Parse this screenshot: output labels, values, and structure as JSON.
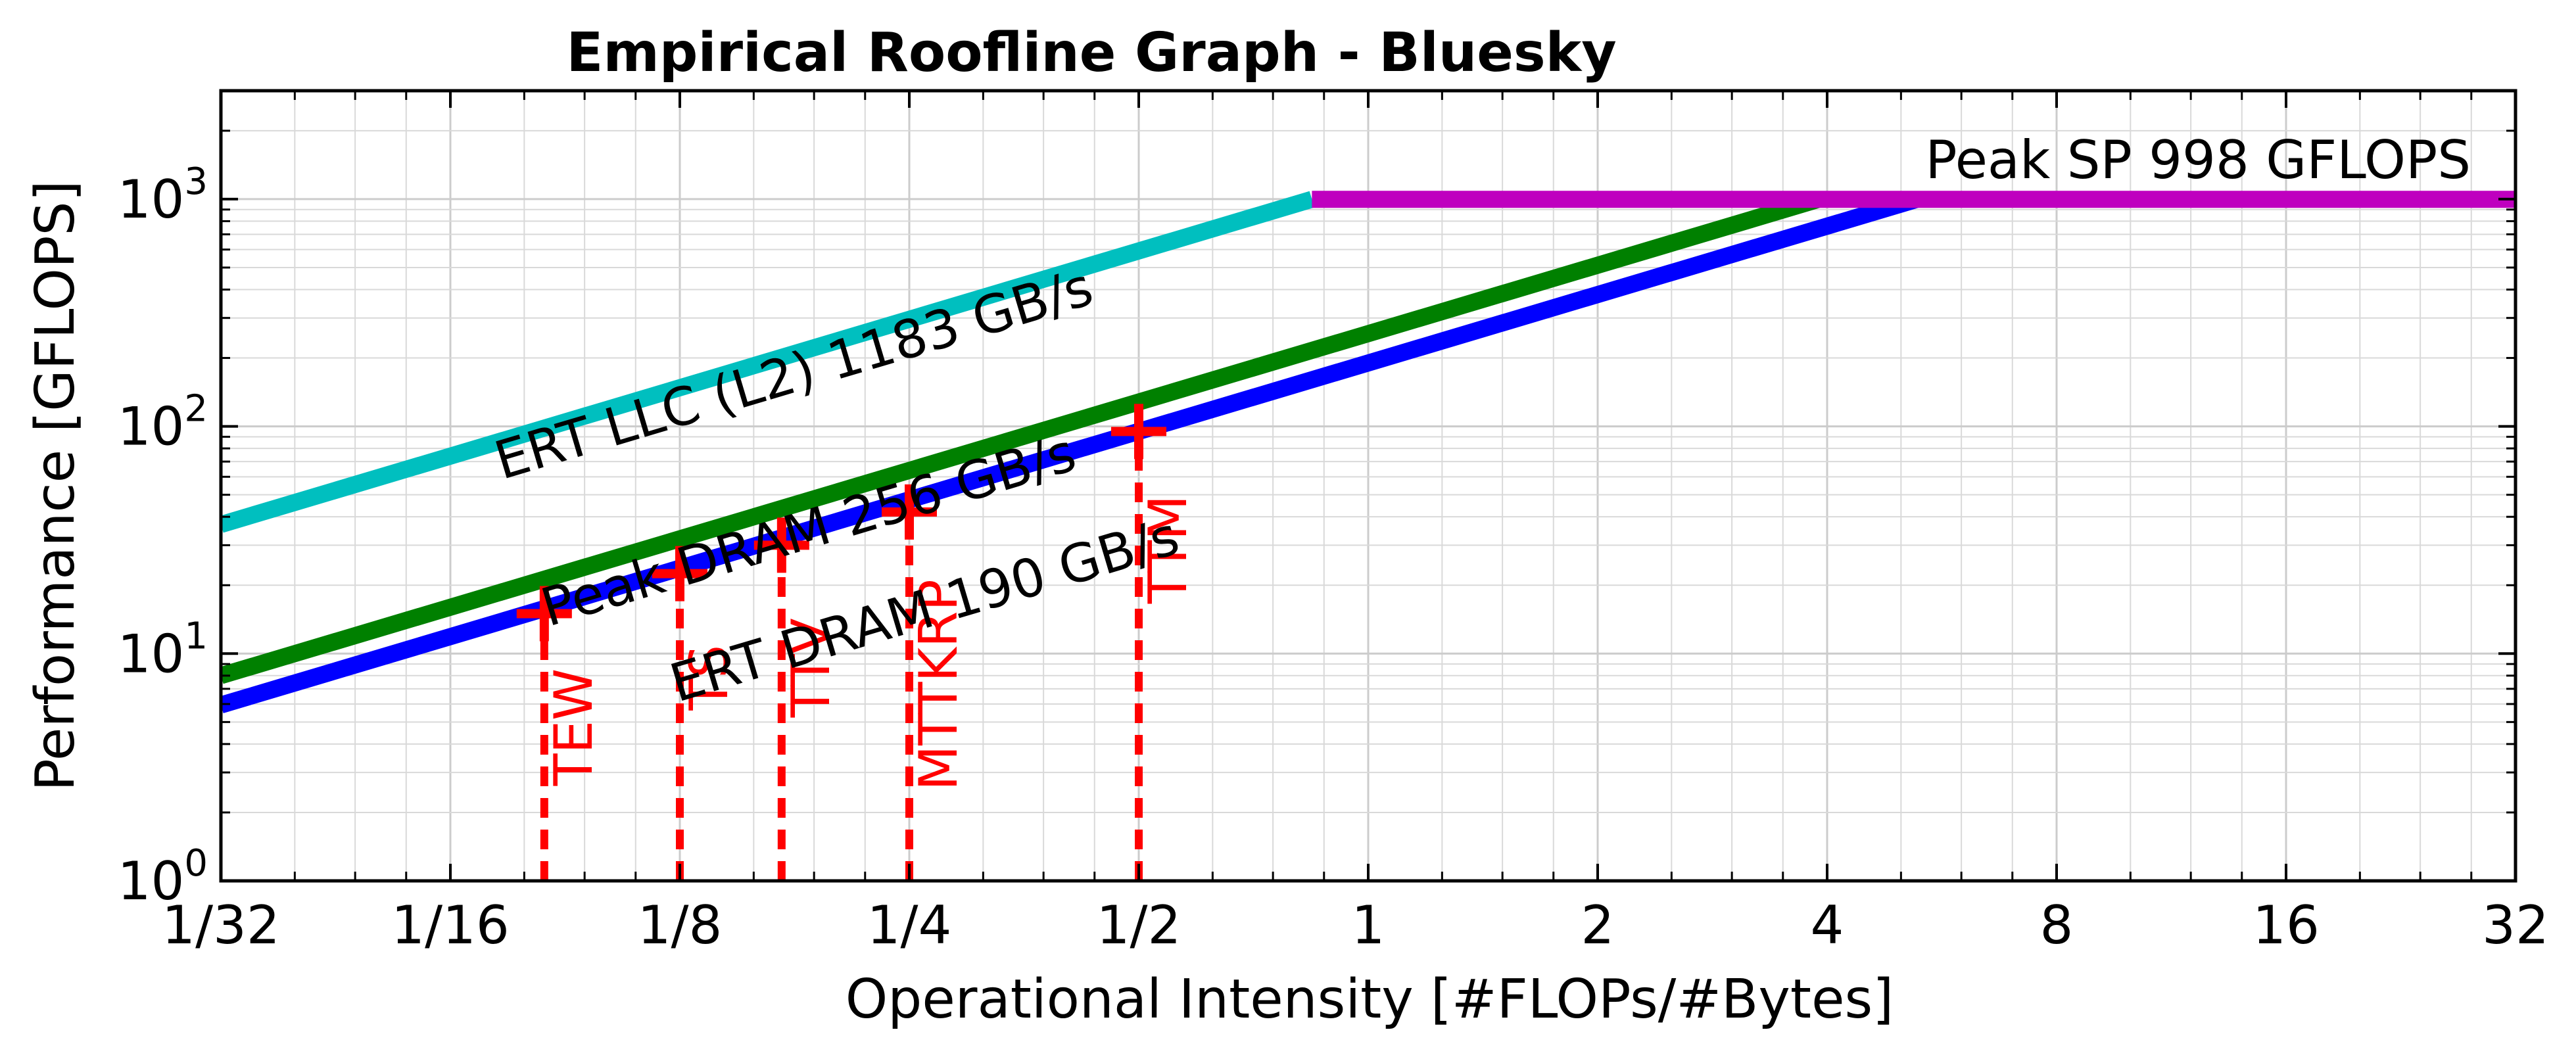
{
  "chart_data": {
    "type": "line",
    "title": "Empirical Roofline Graph - Bluesky",
    "xlabel": "Operational Intensity [#FLOPs/#Bytes]",
    "ylabel": "Performance [GFLOPS]",
    "x_scale": "log2",
    "y_scale": "log10",
    "xlim": [
      0.03125,
      32
    ],
    "ylim": [
      1,
      3000
    ],
    "x_ticks": [
      {
        "value": 0.03125,
        "label": "1/32"
      },
      {
        "value": 0.0625,
        "label": "1/16"
      },
      {
        "value": 0.125,
        "label": "1/8"
      },
      {
        "value": 0.25,
        "label": "1/4"
      },
      {
        "value": 0.5,
        "label": "1/2"
      },
      {
        "value": 1,
        "label": "1"
      },
      {
        "value": 2,
        "label": "2"
      },
      {
        "value": 4,
        "label": "4"
      },
      {
        "value": 8,
        "label": "8"
      },
      {
        "value": 16,
        "label": "16"
      },
      {
        "value": 32,
        "label": "32"
      }
    ],
    "y_ticks": [
      {
        "value": 1,
        "base": "10",
        "exp": "0"
      },
      {
        "value": 10,
        "base": "10",
        "exp": "1"
      },
      {
        "value": 100,
        "base": "10",
        "exp": "2"
      },
      {
        "value": 1000,
        "base": "10",
        "exp": "3"
      }
    ],
    "grid": true,
    "lines": [
      {
        "label": "ERT LLC (L2) 1183 GB/s",
        "color": "#00bfbf",
        "points": [
          [
            0.03125,
            37
          ],
          [
            0.8437,
            998
          ]
        ]
      },
      {
        "label": "Peak DRAM 256 GB/s",
        "color": "#008000",
        "points": [
          [
            0.03125,
            8
          ],
          [
            3.9,
            998
          ]
        ]
      },
      {
        "label": "ERT DRAM 190 GB/s",
        "color": "#0000ff",
        "points": [
          [
            0.03125,
            5.94
          ],
          [
            5.25,
            998
          ]
        ]
      },
      {
        "label": "Peak SP 998 GFLOPS",
        "color": "#bf00bf",
        "points": [
          [
            0.8437,
            998
          ],
          [
            32,
            998
          ]
        ]
      }
    ],
    "kernels": [
      {
        "name": "TEW",
        "x": 0.083,
        "y": 15
      },
      {
        "name": "TS",
        "x": 0.125,
        "y": 22.5
      },
      {
        "name": "TTV",
        "x": 0.17,
        "y": 30
      },
      {
        "name": "MTTKRP",
        "x": 0.25,
        "y": 42
      },
      {
        "name": "TTM",
        "x": 0.5,
        "y": 95
      }
    ],
    "kernel_color": "#ff0000"
  }
}
